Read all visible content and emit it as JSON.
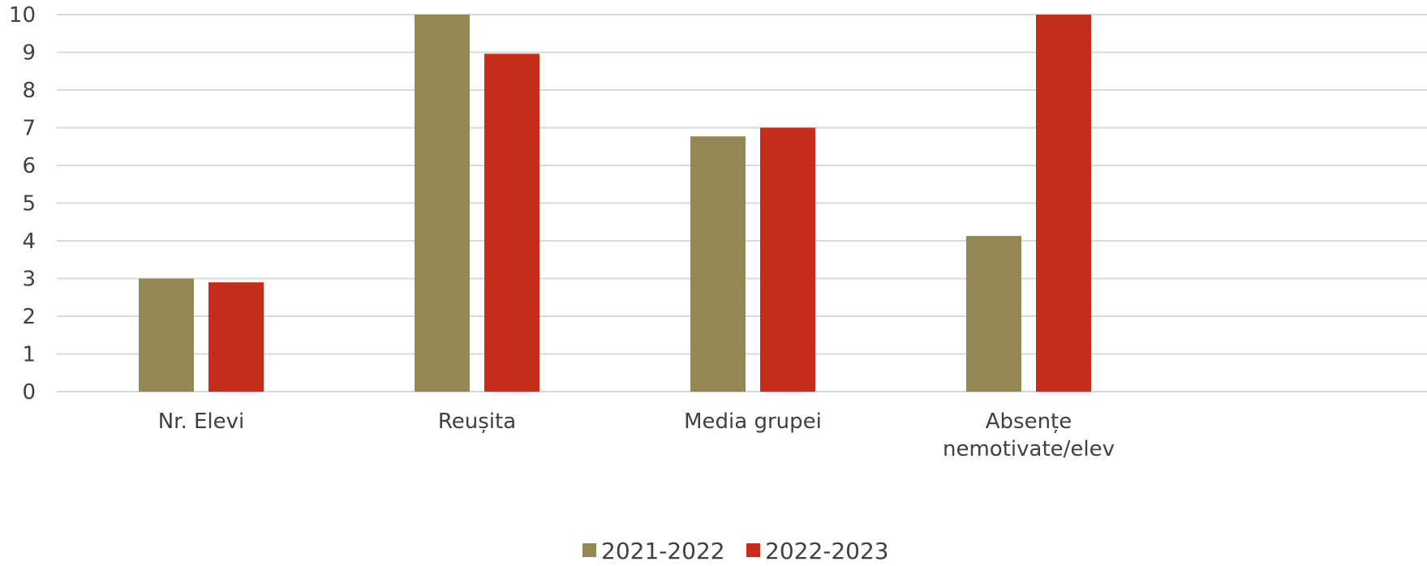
{
  "chart_data": {
    "type": "bar",
    "categories": [
      "Nr. Elevi",
      "Reușita",
      "Media grupei",
      "Absențe nemotivate/elev"
    ],
    "category_lines": [
      [
        "Nr. Elevi"
      ],
      [
        "Reușita"
      ],
      [
        "Media grupei"
      ],
      [
        "Absențe",
        "nemotivate/elev"
      ]
    ],
    "series": [
      {
        "name": "2021-2022",
        "values": [
          3,
          10,
          6.77,
          4.13
        ],
        "color": "#938856"
      },
      {
        "name": "2022-2023",
        "values": [
          2.9,
          8.96,
          7,
          10
        ],
        "color": "#C42E1A"
      }
    ],
    "y_ticks": [
      "0",
      "1",
      "2",
      "3",
      "4",
      "5",
      "6",
      "7",
      "8",
      "9",
      "10"
    ],
    "ylim": [
      0,
      10
    ],
    "grid": true,
    "legend_position": "bottom-center",
    "title": "",
    "xlabel": "",
    "ylabel": ""
  }
}
